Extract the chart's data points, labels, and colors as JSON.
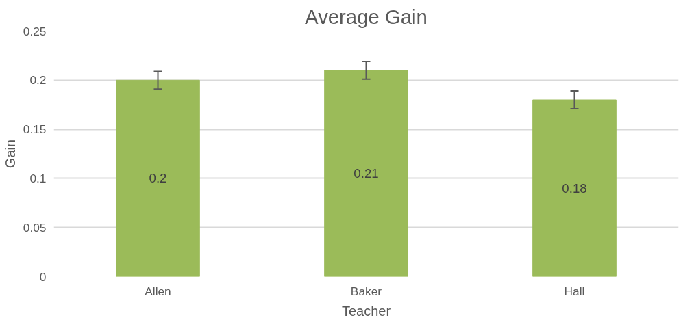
{
  "chart_data": {
    "type": "bar",
    "title": "Average Gain",
    "xlabel": "Teacher",
    "ylabel": "Gain",
    "categories": [
      "Allen",
      "Baker",
      "Hall"
    ],
    "values": [
      0.2,
      0.21,
      0.18
    ],
    "errors": [
      0.009,
      0.009,
      0.009
    ],
    "color": "#9bbb59",
    "ylim": [
      0,
      0.25
    ],
    "yticks": [
      0,
      0.05,
      0.1,
      0.15,
      0.2,
      0.25
    ],
    "grid": "y",
    "data_labels": true
  }
}
